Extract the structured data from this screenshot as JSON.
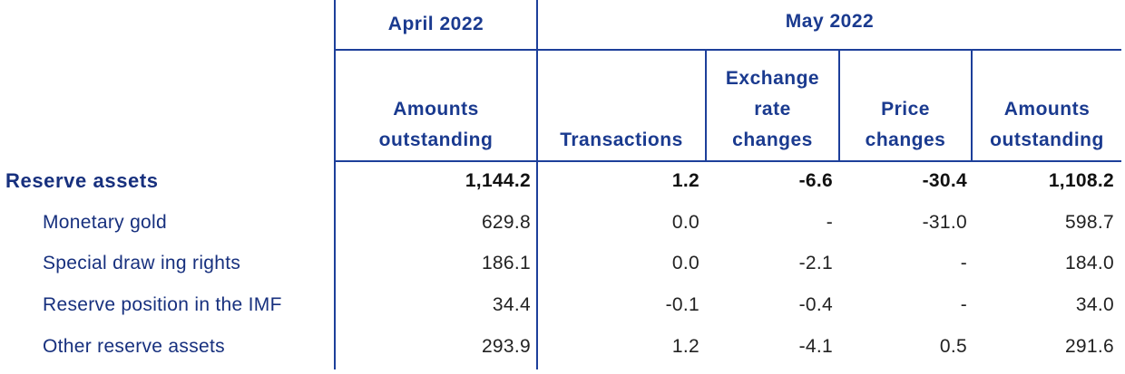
{
  "header": {
    "period_april": "April 2022",
    "period_may": "May 2022",
    "columns": [
      {
        "line1": "Amounts",
        "line2": "outstanding"
      },
      {
        "line1": "Transactions"
      },
      {
        "line0": "Exchange",
        "line1": "rate",
        "line2": "changes"
      },
      {
        "line1": "Price",
        "line2": "changes"
      },
      {
        "line1": "Amounts",
        "line2": "outstanding"
      }
    ]
  },
  "rows": [
    {
      "label": "Reserve assets",
      "values": [
        "1,144.2",
        "1.2",
        "-6.6",
        "-30.4",
        "1,108.2"
      ]
    },
    {
      "label": "Monetary gold",
      "values": [
        "629.8",
        "0.0",
        "-",
        "-31.0",
        "598.7"
      ]
    },
    {
      "label": "Special draw ing rights",
      "values": [
        "186.1",
        "0.0",
        "-2.1",
        "-",
        "184.0"
      ]
    },
    {
      "label": "Reserve position in the IMF",
      "values": [
        "34.4",
        "-0.1",
        "-0.4",
        "-",
        "34.0"
      ]
    },
    {
      "label": "Other reserve assets",
      "values": [
        "293.9",
        "1.2",
        "-4.1",
        "0.5",
        "291.6"
      ]
    }
  ],
  "colors": {
    "header_text": "#1a3a8f",
    "rule": "#1d3f9a",
    "label_text": "#17307e"
  }
}
